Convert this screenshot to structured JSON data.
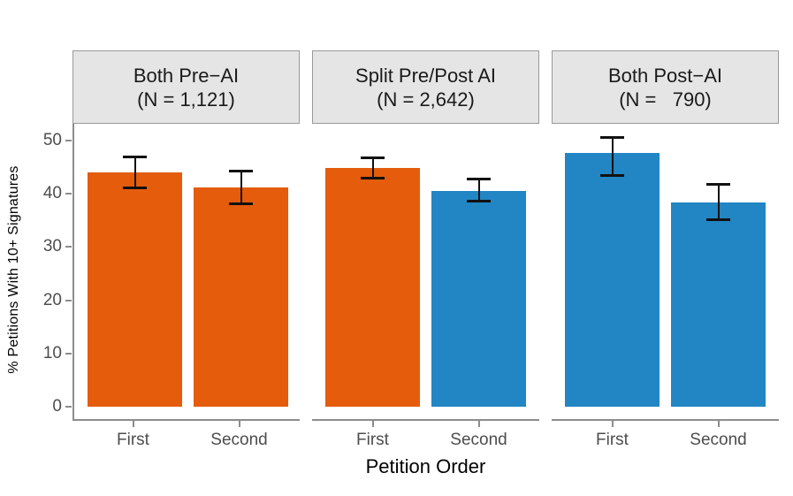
{
  "figure": {
    "y_axis_title": "% Petitions With 10+ Signatures",
    "x_axis_title": "Petition Order"
  },
  "axis": {
    "text_color": "#4D4D4D",
    "line_color": "#8C8C8C",
    "title_color": "#000000"
  },
  "strip_style": {
    "background": "#E5E5E5",
    "border": "#999999",
    "text_color": "#1A1A1A"
  },
  "chart_data": {
    "type": "bar",
    "x_categories": [
      "First",
      "Second"
    ],
    "xlabel": "Petition Order",
    "ylabel": "% Petitions With 10+ Signatures",
    "ylim": [
      0,
      53
    ],
    "y_ticks": [
      0,
      10,
      20,
      30,
      40,
      50
    ],
    "grid": "off",
    "legend": "none",
    "error_bars": "95% CI",
    "palette": {
      "orange": "#E45C0C",
      "blue": "#2186C3"
    },
    "facets": [
      {
        "title": "Both Pre−AI",
        "subtitle": "(N = 1,121)",
        "bars": [
          {
            "category": "First",
            "value": 44.1,
            "ci_low": 41.2,
            "ci_high": 47.0,
            "color": "orange"
          },
          {
            "category": "Second",
            "value": 41.2,
            "ci_low": 38.2,
            "ci_high": 44.3,
            "color": "orange"
          }
        ]
      },
      {
        "title": "Split Pre/Post AI",
        "subtitle": "(N = 2,642)",
        "bars": [
          {
            "category": "First",
            "value": 44.9,
            "ci_low": 43.0,
            "ci_high": 46.9,
            "color": "orange"
          },
          {
            "category": "Second",
            "value": 40.6,
            "ci_low": 38.7,
            "ci_high": 42.9,
            "color": "blue"
          }
        ]
      },
      {
        "title": "Both Post−AI",
        "subtitle": "(N =   790)",
        "bars": [
          {
            "category": "First",
            "value": 47.6,
            "ci_low": 43.6,
            "ci_high": 50.7,
            "color": "blue"
          },
          {
            "category": "Second",
            "value": 38.4,
            "ci_low": 35.2,
            "ci_high": 41.8,
            "color": "blue"
          }
        ]
      }
    ]
  }
}
